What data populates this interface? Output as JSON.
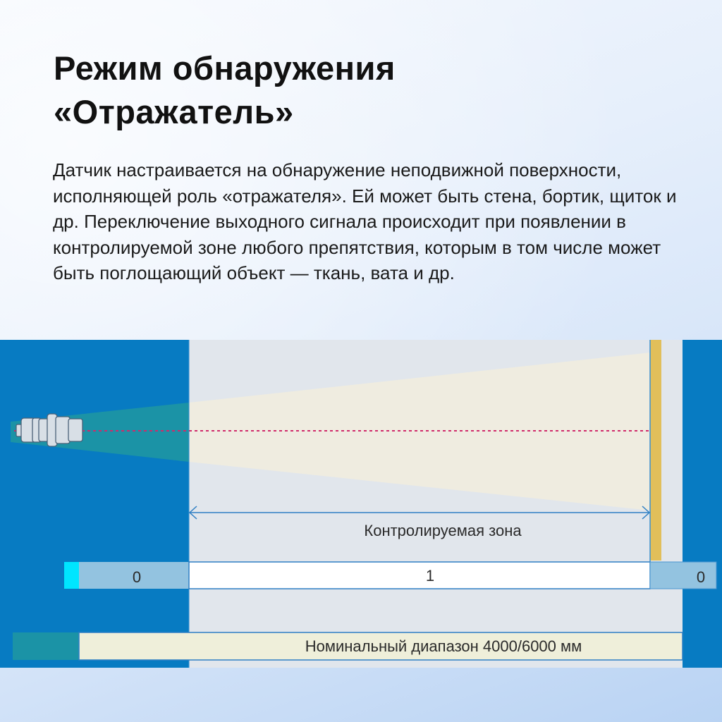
{
  "title_line1": "Режим обнаружения",
  "title_line2": "«Отражатель»",
  "description": "Датчик настраивается на обнаружение неподвижной поверхности, исполняющей роль «отражателя». Ей может быть стена, бортик, щиток и др. Переключение выходного сигнала происходит при появлении в контролируемой зоне любого препятствия, которым в том числе может быть поглощающий объект — ткань, вата и др.",
  "diagram": {
    "zone_label": "Контролируемая зона",
    "output_left": "0",
    "output_middle": "1",
    "output_right": "0",
    "range_label": "Номинальный диапазон 4000/6000 мм",
    "colors": {
      "side": "#077bc2",
      "zone": "#e1e6ec",
      "beam_near": "#1b93a6",
      "beam_far": "#efece0",
      "reflector": "#e1bf5a",
      "beam_axis": "#d02a6a",
      "output_off": "#93c3e0",
      "output_on": "#ffffff",
      "indicator": "#00e5ff"
    }
  }
}
